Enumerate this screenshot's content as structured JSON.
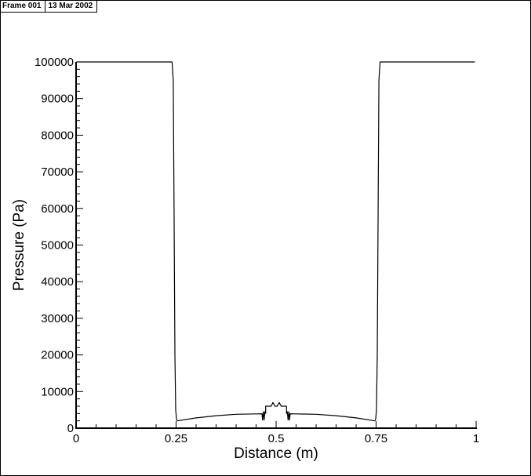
{
  "header": {
    "frame_label": "Frame 001",
    "date_label": "13 Mar 2002"
  },
  "chart_data": {
    "type": "line",
    "title": "",
    "xlabel": "Distance (m)",
    "ylabel": "Pressure (Pa)",
    "xlim": [
      0,
      1
    ],
    "ylim": [
      0,
      100000
    ],
    "x_ticks": [
      0,
      0.25,
      0.5,
      0.75,
      1
    ],
    "x_tick_labels": [
      "0",
      "0.25",
      "0.5",
      "0.75",
      "1"
    ],
    "y_ticks": [
      0,
      10000,
      20000,
      30000,
      40000,
      50000,
      60000,
      70000,
      80000,
      90000,
      100000
    ],
    "y_tick_labels": [
      "0",
      "10000",
      "20000",
      "30000",
      "40000",
      "50000",
      "60000",
      "70000",
      "80000",
      "90000",
      "100000"
    ],
    "grid": false,
    "series": [
      {
        "x": [
          0.003,
          0.24,
          0.243,
          0.245,
          0.247,
          0.249,
          0.251,
          0.253,
          0.3,
          0.35,
          0.4,
          0.45,
          0.465,
          0.466,
          0.468,
          0.47,
          0.472,
          0.474,
          0.474,
          0.48,
          0.487,
          0.49,
          0.492,
          0.495,
          0.497,
          0.5,
          0.503,
          0.505,
          0.508,
          0.51,
          0.513,
          0.52,
          0.526,
          0.526,
          0.528,
          0.53,
          0.532,
          0.534,
          0.535,
          0.55,
          0.6,
          0.65,
          0.7,
          0.747,
          0.749,
          0.751,
          0.753,
          0.755,
          0.757,
          0.76,
          0.997
        ],
        "y": [
          100000,
          100000,
          95000,
          60000,
          20000,
          5000,
          2500,
          2000,
          2800,
          3400,
          3800,
          3900,
          3950,
          2200,
          4500,
          2200,
          4500,
          4000,
          6000,
          6000,
          6000,
          6500,
          7000,
          6500,
          6000,
          6000,
          6000,
          6500,
          7000,
          6500,
          6000,
          6000,
          6000,
          4000,
          4500,
          2200,
          4500,
          2200,
          3950,
          3900,
          3800,
          3400,
          2800,
          2000,
          2500,
          5000,
          20000,
          60000,
          95000,
          100000,
          100000
        ]
      }
    ]
  }
}
